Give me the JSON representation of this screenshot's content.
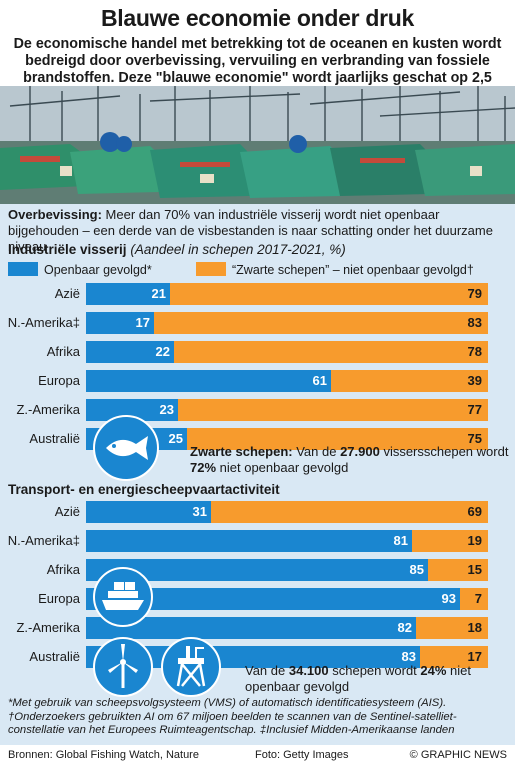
{
  "title": "Blauwe economie onder druk",
  "subtitle": "De economische handel met betrekking tot de oceanen en kusten wordt bedreigd door overbevissing, vervuiling en verbranding van fossiele brandstoffen. Deze \"blauwe economie\" wordt jaarlijks geschat op 2,5 biljoen dollar",
  "overfishing": {
    "label": "Overbevissing:",
    "text": " Meer dan 70% van industriële visserij wordt niet openbaar bijgehouden – een derde van de visbestanden is naar schatting onder het duurzame niveau"
  },
  "legend": {
    "blue": "Openbaar gevolgd*",
    "orange": "“Zwarte schepen” – niet openbaar gevolgd†"
  },
  "colors": {
    "blue": "#1a86d0",
    "orange": "#f79b2d",
    "background": "#d9e8f4"
  },
  "callout1": {
    "label": "Zwarte schepen:",
    "pre": " Van de ",
    "num": "27.900",
    "mid": " vissersschepen wordt ",
    "pct": "72%",
    "post": " niet openbaar gevolgd"
  },
  "callout2": {
    "pre": "Van de ",
    "num": "34.100",
    "mid": " schepen wordt ",
    "pct": "24%",
    "post": " niet openbaar gevolgd"
  },
  "footnotes": [
    "*Met gebruik van scheepsvolgsysteem (VMS) of automatisch identificatiesysteem (AIS).",
    "†Onderzoekers gebruikten AI om 67 miljoen beelden te scannen van de Sentinel-satelliet-constellatie van het Europees Ruimteagentschap. ‡Inclusief Midden-Amerikaanse landen"
  ],
  "sources": {
    "left": "Bronnen: Global Fishing Watch, Nature",
    "mid": "Foto: Getty Images",
    "right": "© GRAPHIC NEWS"
  },
  "icons": [
    "fish-icon",
    "cargo-ship-icon",
    "wind-turbine-icon",
    "oil-platform-icon"
  ],
  "chart_data": [
    {
      "type": "bar",
      "title": "Industriële visserij",
      "subtitle": "(Aandeel in schepen 2017-2021, %)",
      "orientation": "horizontal-stacked",
      "categories": [
        "Azië",
        "N.-Amerika‡",
        "Afrika",
        "Europa",
        "Z.-Amerika",
        "Australië"
      ],
      "series": [
        {
          "name": "Openbaar gevolgd*",
          "values": [
            21,
            17,
            22,
            61,
            23,
            25
          ]
        },
        {
          "name": "“Zwarte schepen” – niet openbaar gevolgd†",
          "values": [
            79,
            83,
            78,
            39,
            77,
            75
          ]
        }
      ],
      "xlim": [
        0,
        100
      ]
    },
    {
      "type": "bar",
      "title": "Transport- en energiescheepvaartactiviteit",
      "orientation": "horizontal-stacked",
      "categories": [
        "Azië",
        "N.-Amerika‡",
        "Afrika",
        "Europa",
        "Z.-Amerika",
        "Australië"
      ],
      "series": [
        {
          "name": "Openbaar gevolgd*",
          "values": [
            31,
            81,
            85,
            93,
            82,
            83
          ]
        },
        {
          "name": "“Zwarte schepen” – niet openbaar gevolgd†",
          "values": [
            69,
            19,
            15,
            7,
            18,
            17
          ]
        }
      ],
      "xlim": [
        0,
        100
      ]
    }
  ]
}
